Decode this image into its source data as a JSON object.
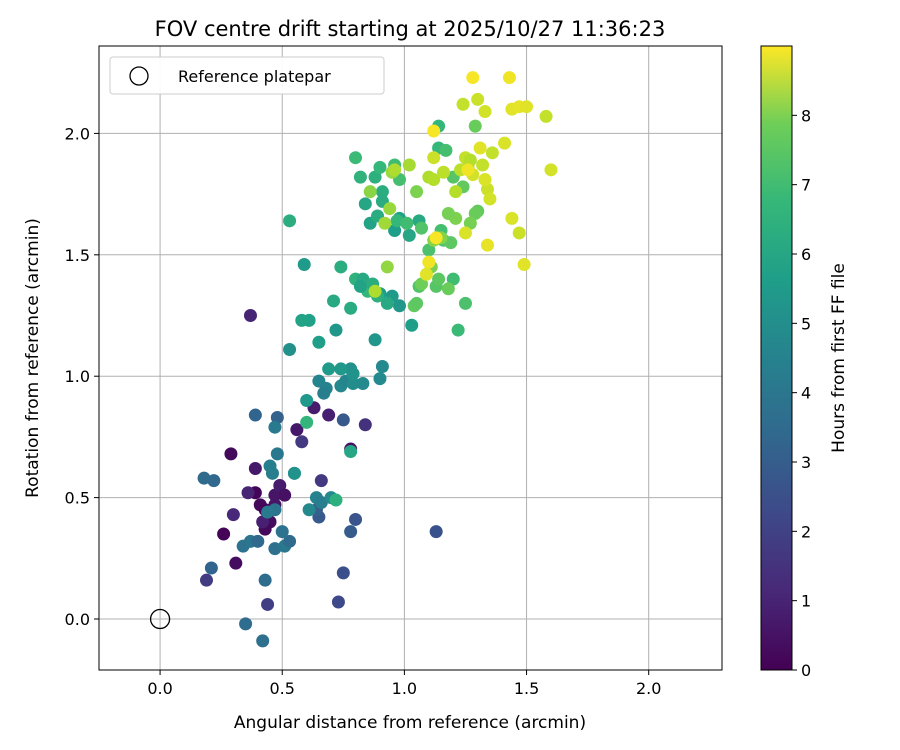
{
  "chart_data": {
    "type": "scatter",
    "title": "FOV centre drift starting at 2025/10/27 11:36:23",
    "xlabel": "Angular distance from reference (arcmin)",
    "ylabel": "Rotation from reference (arcmin)",
    "xlim": [
      -0.25,
      2.3
    ],
    "ylim": [
      -0.21,
      2.36
    ],
    "xticks": [
      0.0,
      0.5,
      1.0,
      1.5,
      2.0
    ],
    "yticks": [
      0.0,
      0.5,
      1.0,
      1.5,
      2.0
    ],
    "xtick_labels": [
      "0.0",
      "0.5",
      "1.0",
      "1.5",
      "2.0"
    ],
    "ytick_labels": [
      "0.0",
      "0.5",
      "1.0",
      "1.5",
      "2.0"
    ],
    "grid": true,
    "legend": {
      "location": "top-left",
      "entries": [
        "Reference platepar"
      ]
    },
    "reference_point": {
      "x": 0.0,
      "y": 0.0,
      "label": "Reference platepar"
    },
    "colorbar": {
      "label": "Hours from first FF file",
      "range": [
        0,
        9
      ],
      "ticks": [
        0,
        1,
        2,
        3,
        4,
        5,
        6,
        7,
        8
      ],
      "tick_labels": [
        "0",
        "1",
        "2",
        "3",
        "4",
        "5",
        "6",
        "7",
        "8"
      ],
      "colormap": "viridis"
    },
    "points": [
      [
        0.26,
        0.35,
        0.1
      ],
      [
        0.29,
        0.68,
        0.2
      ],
      [
        0.31,
        0.23,
        0.3
      ],
      [
        0.39,
        0.52,
        0.1
      ],
      [
        0.41,
        0.47,
        0.2
      ],
      [
        0.43,
        0.45,
        0.1
      ],
      [
        0.45,
        0.4,
        0.3
      ],
      [
        0.47,
        0.51,
        0.5
      ],
      [
        0.49,
        0.55,
        0.7
      ],
      [
        0.51,
        0.51,
        0.4
      ],
      [
        0.43,
        0.37,
        0.2
      ],
      [
        0.36,
        0.52,
        0.9
      ],
      [
        0.3,
        0.43,
        1.0
      ],
      [
        0.39,
        0.62,
        0.6
      ],
      [
        0.42,
        0.4,
        0.8
      ],
      [
        0.47,
        0.47,
        0.5
      ],
      [
        0.37,
        1.25,
        0.9
      ],
      [
        0.56,
        0.78,
        0.6
      ],
      [
        0.63,
        0.87,
        0.7
      ],
      [
        0.69,
        0.84,
        0.8
      ],
      [
        0.78,
        0.7,
        0.4
      ],
      [
        0.84,
        0.8,
        1.3
      ],
      [
        0.58,
        0.73,
        1.5
      ],
      [
        0.66,
        0.57,
        1.5
      ],
      [
        0.19,
        0.16,
        1.6
      ],
      [
        0.44,
        0.06,
        1.7
      ],
      [
        0.73,
        0.07,
        2.0
      ],
      [
        0.75,
        0.19,
        2.2
      ],
      [
        1.13,
        0.36,
        2.3
      ],
      [
        0.75,
        0.82,
        2.5
      ],
      [
        0.78,
        0.36,
        2.6
      ],
      [
        0.8,
        0.41,
        2.4
      ],
      [
        0.65,
        0.42,
        2.5
      ],
      [
        0.64,
        0.45,
        2.7
      ],
      [
        0.48,
        0.83,
        2.8
      ],
      [
        0.39,
        0.84,
        2.9
      ],
      [
        0.21,
        0.21,
        2.9
      ],
      [
        0.22,
        0.57,
        3.0
      ],
      [
        0.18,
        0.58,
        3.1
      ],
      [
        0.35,
        -0.02,
        3.2
      ],
      [
        0.42,
        -0.09,
        3.3
      ],
      [
        0.43,
        0.16,
        3.2
      ],
      [
        0.34,
        0.3,
        3.4
      ],
      [
        0.37,
        0.32,
        3.5
      ],
      [
        0.4,
        0.32,
        3.0
      ],
      [
        0.47,
        0.29,
        3.3
      ],
      [
        0.51,
        0.3,
        3.6
      ],
      [
        0.53,
        0.32,
        3.1
      ],
      [
        0.5,
        0.36,
        3.4
      ],
      [
        0.47,
        0.45,
        3.5
      ],
      [
        0.44,
        0.44,
        3.7
      ],
      [
        0.46,
        0.6,
        3.8
      ],
      [
        0.45,
        0.63,
        3.9
      ],
      [
        0.48,
        0.68,
        3.6
      ],
      [
        0.47,
        0.79,
        3.7
      ],
      [
        0.55,
        0.6,
        4.0
      ],
      [
        0.61,
        0.45,
        4.2
      ],
      [
        0.64,
        0.5,
        4.0
      ],
      [
        0.66,
        0.48,
        3.8
      ],
      [
        0.7,
        0.5,
        4.3
      ],
      [
        0.65,
        0.98,
        4.1
      ],
      [
        0.68,
        0.95,
        4.0
      ],
      [
        0.67,
        0.93,
        3.9
      ],
      [
        0.74,
        0.96,
        4.2
      ],
      [
        0.76,
        0.98,
        4.1
      ],
      [
        0.79,
        0.97,
        4.4
      ],
      [
        0.83,
        0.97,
        4.3
      ],
      [
        0.9,
        0.99,
        4.3
      ],
      [
        0.88,
        1.15,
        4.7
      ],
      [
        0.91,
        1.04,
        4.3
      ],
      [
        0.78,
        1.03,
        4.5
      ],
      [
        0.79,
        1.01,
        4.6
      ],
      [
        0.72,
        1.19,
        4.7
      ],
      [
        0.74,
        1.03,
        4.8
      ],
      [
        0.55,
        0.6,
        4.6
      ],
      [
        0.6,
        0.9,
        4.8
      ],
      [
        0.61,
        1.23,
        5.1
      ],
      [
        0.58,
        1.23,
        5.2
      ],
      [
        0.65,
        1.14,
        5.0
      ],
      [
        0.53,
        1.11,
        4.5
      ],
      [
        0.69,
        1.03,
        4.9
      ],
      [
        0.71,
        1.31,
        5.4
      ],
      [
        0.78,
        1.28,
        5.5
      ],
      [
        0.74,
        1.45,
        5.6
      ],
      [
        0.8,
        1.4,
        5.8
      ],
      [
        0.83,
        1.4,
        5.4
      ],
      [
        0.85,
        1.35,
        5.9
      ],
      [
        0.9,
        1.34,
        5.0
      ],
      [
        0.95,
        1.33,
        4.9
      ],
      [
        0.98,
        1.29,
        4.7
      ],
      [
        1.03,
        1.21,
        5.0
      ],
      [
        0.89,
        1.33,
        5.7
      ],
      [
        0.93,
        1.3,
        5.4
      ],
      [
        0.87,
        1.38,
        5.6
      ],
      [
        0.82,
        1.37,
        5.2
      ],
      [
        0.59,
        1.46,
        4.9
      ],
      [
        0.53,
        1.64,
        5.6
      ],
      [
        0.6,
        0.81,
        5.9
      ],
      [
        0.78,
        0.69,
        5.3
      ],
      [
        0.72,
        0.49,
        5.7
      ],
      [
        0.86,
        1.63,
        5.2
      ],
      [
        0.84,
        1.71,
        5.3
      ],
      [
        0.89,
        1.66,
        5.5
      ],
      [
        0.91,
        1.76,
        5.6
      ],
      [
        0.96,
        1.6,
        5.0
      ],
      [
        0.98,
        1.65,
        5.1
      ],
      [
        1.02,
        1.58,
        5.3
      ],
      [
        1.06,
        1.64,
        5.4
      ],
      [
        0.91,
        1.72,
        5.5
      ],
      [
        0.88,
        1.82,
        5.7
      ],
      [
        0.82,
        1.82,
        5.8
      ],
      [
        0.8,
        1.9,
        6.1
      ],
      [
        0.9,
        1.86,
        6.0
      ],
      [
        0.96,
        1.87,
        6.2
      ],
      [
        0.98,
        1.81,
        6.3
      ],
      [
        0.97,
        1.64,
        6.0
      ],
      [
        1.01,
        1.63,
        6.2
      ],
      [
        1.07,
        1.61,
        6.5
      ],
      [
        1.1,
        1.52,
        6.4
      ],
      [
        1.15,
        1.6,
        6.3
      ],
      [
        1.16,
        1.56,
        6.5
      ],
      [
        1.19,
        1.55,
        6.7
      ],
      [
        1.2,
        1.4,
        6.2
      ],
      [
        1.22,
        1.19,
        6.1
      ],
      [
        1.13,
        1.37,
        6.6
      ],
      [
        1.18,
        1.36,
        6.9
      ],
      [
        1.04,
        1.29,
        6.8
      ],
      [
        1.05,
        1.3,
        6.7
      ],
      [
        1.06,
        1.37,
        6.5
      ],
      [
        1.07,
        1.38,
        7.0
      ],
      [
        1.11,
        1.45,
        7.2
      ],
      [
        1.14,
        1.4,
        6.7
      ],
      [
        1.25,
        1.3,
        6.4
      ],
      [
        1.14,
        2.03,
        5.9
      ],
      [
        1.14,
        1.94,
        6.0
      ],
      [
        1.17,
        1.93,
        6.3
      ],
      [
        1.2,
        1.82,
        6.6
      ],
      [
        1.24,
        1.78,
        6.8
      ],
      [
        1.26,
        1.86,
        7.0
      ],
      [
        1.29,
        2.03,
        6.9
      ],
      [
        1.3,
        1.68,
        6.8
      ],
      [
        1.29,
        1.67,
        6.9
      ],
      [
        1.27,
        1.63,
        7.1
      ],
      [
        1.21,
        1.65,
        7.2
      ],
      [
        1.18,
        1.67,
        7.1
      ],
      [
        1.15,
        1.57,
        7.3
      ],
      [
        1.12,
        1.56,
        7.4
      ],
      [
        1.05,
        1.76,
        7.2
      ],
      [
        0.93,
        1.45,
        7.5
      ],
      [
        0.95,
        1.84,
        7.6
      ],
      [
        0.92,
        1.63,
        7.7
      ],
      [
        0.94,
        1.69,
        7.6
      ],
      [
        0.88,
        1.35,
        7.9
      ],
      [
        0.96,
        1.85,
        7.9
      ],
      [
        0.86,
        1.76,
        7.4
      ],
      [
        1.02,
        1.87,
        7.8
      ],
      [
        1.1,
        1.82,
        7.9
      ],
      [
        1.12,
        1.81,
        8.0
      ],
      [
        1.16,
        1.84,
        8.1
      ],
      [
        1.21,
        1.76,
        8.0
      ],
      [
        1.23,
        1.85,
        8.1
      ],
      [
        1.25,
        1.9,
        8.2
      ],
      [
        1.27,
        1.89,
        8.0
      ],
      [
        1.28,
        1.83,
        8.4
      ],
      [
        1.32,
        1.87,
        8.2
      ],
      [
        1.34,
        1.77,
        8.3
      ],
      [
        1.35,
        1.73,
        8.4
      ],
      [
        1.33,
        1.81,
        8.5
      ],
      [
        1.31,
        1.94,
        8.6
      ],
      [
        1.24,
        2.12,
        8.2
      ],
      [
        1.3,
        2.14,
        8.3
      ],
      [
        1.33,
        2.09,
        8.4
      ],
      [
        1.36,
        1.92,
        8.2
      ],
      [
        1.41,
        1.96,
        8.5
      ],
      [
        1.44,
        2.1,
        8.6
      ],
      [
        1.47,
        2.11,
        8.7
      ],
      [
        1.5,
        2.11,
        8.6
      ],
      [
        1.58,
        2.07,
        8.2
      ],
      [
        1.6,
        1.85,
        8.4
      ],
      [
        1.44,
        1.65,
        8.5
      ],
      [
        1.47,
        1.59,
        8.3
      ],
      [
        1.49,
        1.46,
        8.6
      ],
      [
        1.34,
        1.54,
        8.7
      ],
      [
        1.25,
        1.59,
        8.5
      ],
      [
        1.26,
        1.85,
        8.8
      ],
      [
        1.43,
        2.23,
        8.8
      ],
      [
        1.28,
        2.23,
        8.9
      ],
      [
        1.12,
        2.01,
        8.9
      ],
      [
        1.1,
        1.47,
        8.8
      ],
      [
        1.09,
        1.42,
        8.6
      ],
      [
        1.13,
        1.57,
        8.9
      ],
      [
        1.12,
        1.9,
        8.3
      ]
    ]
  }
}
